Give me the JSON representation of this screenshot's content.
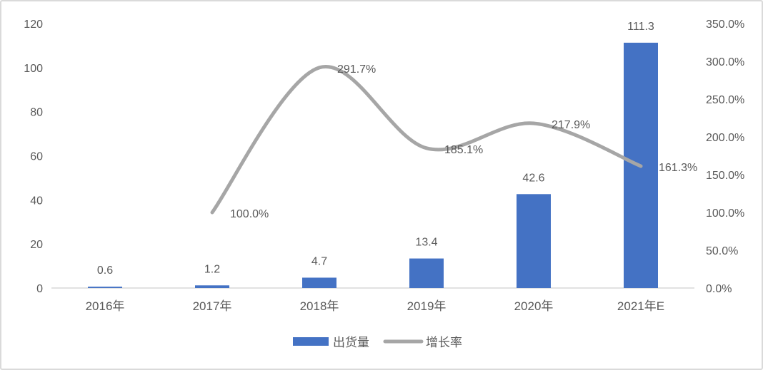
{
  "chart_data": {
    "type": "combo-bar-line",
    "title": "",
    "categories": [
      "2016年",
      "2017年",
      "2018年",
      "2019年",
      "2020年",
      "2021年E"
    ],
    "series": [
      {
        "name": "出货量",
        "type": "bar",
        "axis": "left",
        "values": [
          0.6,
          1.2,
          4.7,
          13.4,
          42.6,
          111.3
        ],
        "labels": [
          "0.6",
          "1.2",
          "4.7",
          "13.4",
          "42.6",
          "111.3"
        ],
        "color": "#4472C4"
      },
      {
        "name": "增长率",
        "type": "line",
        "axis": "right",
        "values": [
          null,
          100.0,
          291.7,
          185.1,
          217.9,
          161.3
        ],
        "labels": [
          null,
          "100.0%",
          "291.7%",
          "185.1%",
          "217.9%",
          "161.3%"
        ],
        "color": "#A6A6A6"
      }
    ],
    "left_axis": {
      "min": 0,
      "max": 120,
      "step": 20,
      "tick_labels": [
        "120",
        "100",
        "80",
        "60",
        "40",
        "20",
        "0"
      ]
    },
    "right_axis": {
      "min": 0,
      "max": 350,
      "step": 50,
      "tick_labels": [
        "350.0%",
        "300.0%",
        "250.0%",
        "200.0%",
        "150.0%",
        "100.0%",
        "50.0%",
        "0.0%"
      ]
    },
    "grid": false,
    "legend": {
      "position": "bottom-center",
      "items": [
        {
          "label": "出货量",
          "swatch": "bar",
          "color": "#4472C4"
        },
        {
          "label": "增长率",
          "swatch": "line",
          "color": "#A6A6A6"
        }
      ]
    },
    "colors": {
      "bar": "#4472C4",
      "line": "#A6A6A6",
      "text": "#595959",
      "axis_line": "#D9D9D9"
    }
  }
}
